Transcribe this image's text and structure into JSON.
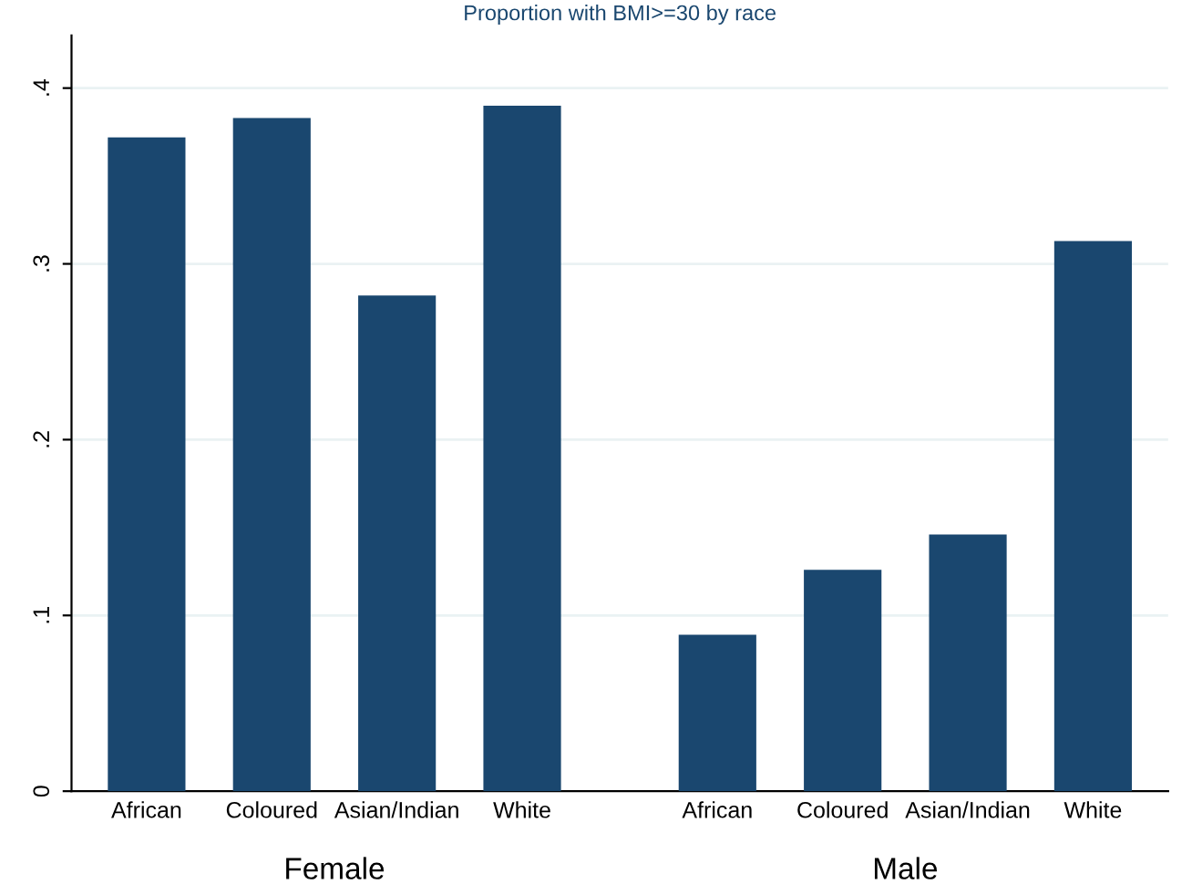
{
  "chart_data": {
    "type": "bar",
    "title": "Proportion with BMI>=30 by race",
    "categories": [
      "African",
      "Coloured",
      "Asian/Indian",
      "White",
      null,
      "African",
      "Coloured",
      "Asian/Indian",
      "White"
    ],
    "values": [
      0.372,
      0.383,
      0.282,
      0.39,
      null,
      0.089,
      0.126,
      0.146,
      0.313
    ],
    "color": "#1a476f",
    "ylim": [
      0,
      0.43
    ],
    "yticks": [
      0,
      {
        "value": 0.1,
        "label": ".1"
      },
      {
        "value": 0.2,
        "label": ".2"
      },
      {
        "value": 0.3,
        "label": ".3"
      },
      {
        "value": 0.4,
        "label": ".4"
      }
    ],
    "grid": "y",
    "annotations": [
      "Female",
      "Male"
    ]
  }
}
